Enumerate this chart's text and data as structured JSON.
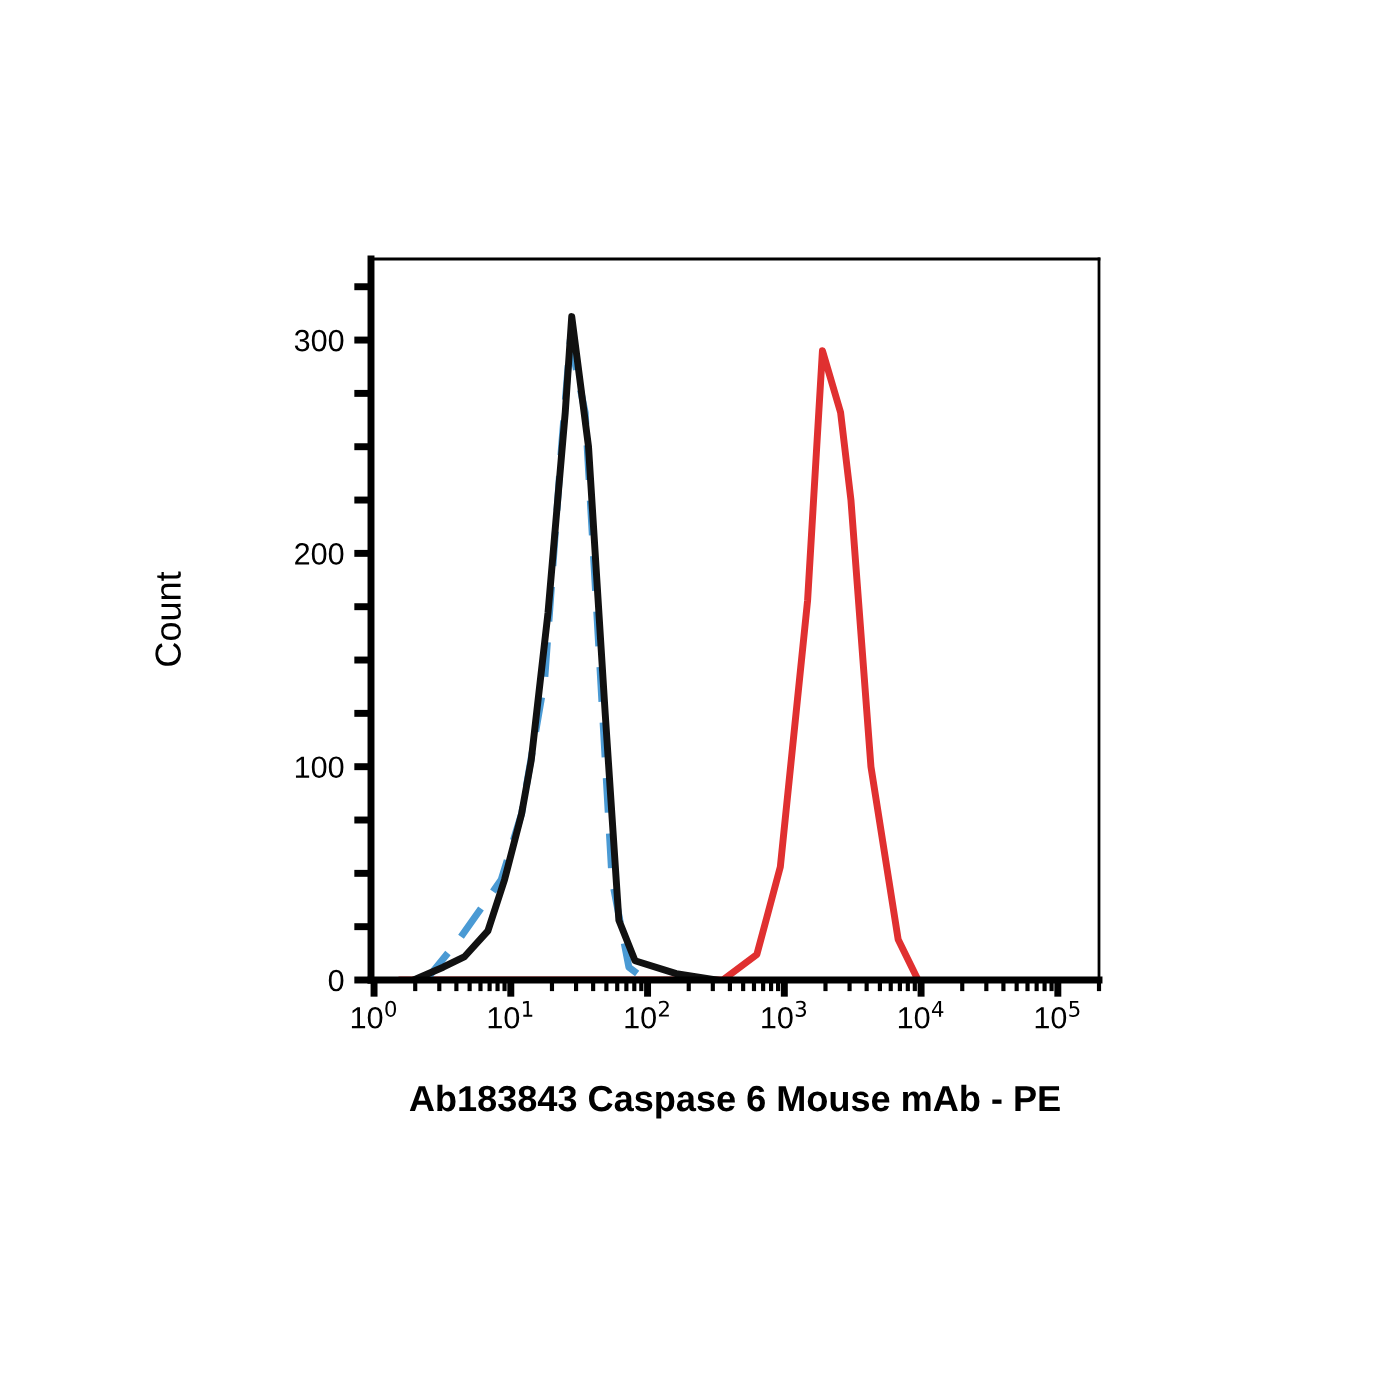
{
  "chart_data": {
    "type": "line",
    "xlabel": "Ab183843 Caspase 6 Mouse mAb - PE",
    "ylabel": "Count",
    "log": "x",
    "grid": false,
    "legend": false,
    "marker": "none",
    "xlim": [
      0.95,
      200000
    ],
    "ylim": [
      0,
      338
    ],
    "xticks": [
      {
        "value": 1,
        "label": "10$^{0}$"
      },
      {
        "value": 10,
        "label": "10$^{1}$"
      },
      {
        "value": 100,
        "label": "10$^{2}$"
      },
      {
        "value": 1000,
        "label": "10$^{3}$"
      },
      {
        "value": 10000,
        "label": "10$^{4}$"
      },
      {
        "value": 100000,
        "label": "10$^{5}$"
      }
    ],
    "yticks": [
      0,
      {
        "value": 25,
        "label": null
      },
      {
        "value": 50,
        "label": null
      },
      {
        "value": 75,
        "label": null
      },
      100,
      {
        "value": 125,
        "label": null
      },
      {
        "value": 150,
        "label": null
      },
      {
        "value": 175,
        "label": null
      },
      200,
      {
        "value": 225,
        "label": null
      },
      {
        "value": 250,
        "label": null
      },
      {
        "value": 275,
        "label": null
      },
      300,
      {
        "value": 325,
        "label": null
      }
    ],
    "series": [
      {
        "color": "#e03030",
        "line_style": "solid",
        "x": [
          1.6,
          250,
          355,
          630,
          935,
          1480,
          1900,
          2580,
          3070,
          4300,
          6800,
          9500
        ],
        "values": [
          0,
          0,
          0,
          12,
          53,
          178,
          295,
          266,
          225,
          100,
          19,
          0
        ]
      },
      {
        "color": "#4a9ad4",
        "line_style": "dashed",
        "x": [
          2.4,
          4.3,
          8.5,
          12,
          17.7,
          23.5,
          27.2,
          35,
          44,
          55,
          73,
          97
        ],
        "values": [
          0,
          20,
          47,
          78,
          141,
          250,
          300,
          266,
          156,
          47,
          6,
          0
        ]
      },
      {
        "color": "#111111",
        "line_style": "solid",
        "x": [
          1.95,
          3.2,
          4.6,
          6.8,
          9,
          12,
          14.1,
          18.7,
          25,
          27.9,
          37,
          49,
          61.7,
          81,
          162,
          316
        ],
        "values": [
          0,
          6,
          11,
          23,
          47,
          78,
          103,
          172,
          266,
          311,
          250,
          125,
          28,
          9,
          3,
          0
        ]
      }
    ]
  }
}
